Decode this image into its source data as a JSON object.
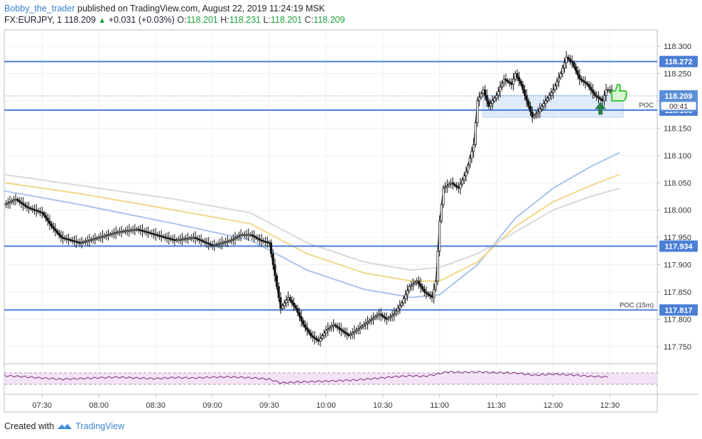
{
  "header": {
    "author": "Bobby_the_trader",
    "published_text": "published on TradingView.com, August 22, 2019 11:24:19 MSK",
    "symbol": "FX:EURJPY, 1",
    "last": "118.209",
    "change": "+0.031 (+0.03%)",
    "open_label": "O:",
    "open": "118.201",
    "high_label": "H:",
    "high": "118.231",
    "low_label": "L:",
    "low": "118.201",
    "close_label": "C:",
    "close": "118.209"
  },
  "footer": {
    "created_with": "Created with",
    "brand": "TradingView"
  },
  "colors": {
    "level_line": "#4a7fd6",
    "ema_blue": "#a9c4ec",
    "ema_yellow": "#f2d78a",
    "ema_gray": "#d9d9d9",
    "rsi_band": "#f3e3f6",
    "rsi_line": "#7b2d7b",
    "up_arrow": "#2e7d4f",
    "thumb_icon": "#3ec83e"
  },
  "chart_data": {
    "type": "candlestick",
    "symbol": "FX:EURJPY",
    "interval": "1",
    "y_range": [
      117.72,
      118.33
    ],
    "y_ticks": [
      "117.750",
      "117.800",
      "117.850",
      "117.900",
      "117.950",
      "118.000",
      "118.050",
      "118.100",
      "118.150",
      "118.200",
      "118.250",
      "118.300"
    ],
    "x_ticks": [
      "07:30",
      "08:00",
      "08:30",
      "09:00",
      "09:30",
      "10:00",
      "10:30",
      "11:00",
      "11:30",
      "12:00",
      "12:30"
    ],
    "x_range_minutes": [
      430,
      775
    ],
    "price_path": [
      [
        430,
        118.01
      ],
      [
        436,
        118.02
      ],
      [
        442,
        118.005
      ],
      [
        450,
        117.995
      ],
      [
        455,
        117.97
      ],
      [
        460,
        117.95
      ],
      [
        470,
        117.94
      ],
      [
        480,
        117.95
      ],
      [
        490,
        117.96
      ],
      [
        500,
        117.965
      ],
      [
        510,
        117.955
      ],
      [
        520,
        117.945
      ],
      [
        530,
        117.95
      ],
      [
        540,
        117.935
      ],
      [
        550,
        117.945
      ],
      [
        555,
        117.955
      ],
      [
        560,
        117.955
      ],
      [
        565,
        117.945
      ],
      [
        570,
        117.94
      ],
      [
        572,
        117.9
      ],
      [
        574,
        117.86
      ],
      [
        576,
        117.82
      ],
      [
        580,
        117.84
      ],
      [
        584,
        117.82
      ],
      [
        588,
        117.79
      ],
      [
        592,
        117.77
      ],
      [
        596,
        117.76
      ],
      [
        600,
        117.78
      ],
      [
        604,
        117.79
      ],
      [
        608,
        117.78
      ],
      [
        612,
        117.77
      ],
      [
        616,
        117.78
      ],
      [
        620,
        117.79
      ],
      [
        624,
        117.8
      ],
      [
        628,
        117.81
      ],
      [
        632,
        117.8
      ],
      [
        636,
        117.81
      ],
      [
        640,
        117.83
      ],
      [
        644,
        117.86
      ],
      [
        648,
        117.87
      ],
      [
        652,
        117.85
      ],
      [
        656,
        117.84
      ],
      [
        658,
        117.87
      ],
      [
        660,
        117.98
      ],
      [
        662,
        118.04
      ],
      [
        666,
        118.05
      ],
      [
        670,
        118.04
      ],
      [
        674,
        118.07
      ],
      [
        678,
        118.12
      ],
      [
        680,
        118.2
      ],
      [
        683,
        118.22
      ],
      [
        686,
        118.19
      ],
      [
        690,
        118.21
      ],
      [
        694,
        118.24
      ],
      [
        698,
        118.23
      ],
      [
        700,
        118.25
      ],
      [
        703,
        118.23
      ],
      [
        706,
        118.2
      ],
      [
        709,
        118.17
      ],
      [
        712,
        118.18
      ],
      [
        716,
        118.2
      ],
      [
        720,
        118.22
      ],
      [
        724,
        118.25
      ],
      [
        727,
        118.28
      ],
      [
        730,
        118.27
      ],
      [
        734,
        118.24
      ],
      [
        738,
        118.23
      ],
      [
        742,
        118.21
      ],
      [
        746,
        118.2
      ],
      [
        748,
        118.22
      ],
      [
        750,
        118.22
      ],
      [
        752,
        118.209
      ]
    ],
    "ema_series": [
      {
        "color_key": "ema_blue",
        "points": [
          [
            430,
            118.035
          ],
          [
            470,
            118.01
          ],
          [
            520,
            117.975
          ],
          [
            560,
            117.945
          ],
          [
            590,
            117.89
          ],
          [
            620,
            117.855
          ],
          [
            645,
            117.84
          ],
          [
            660,
            117.845
          ],
          [
            680,
            117.9
          ],
          [
            700,
            117.985
          ],
          [
            720,
            118.04
          ],
          [
            740,
            118.08
          ],
          [
            755,
            118.105
          ]
        ]
      },
      {
        "color_key": "ema_yellow",
        "points": [
          [
            430,
            118.05
          ],
          [
            470,
            118.03
          ],
          [
            520,
            118.0
          ],
          [
            560,
            117.975
          ],
          [
            590,
            117.92
          ],
          [
            620,
            117.885
          ],
          [
            645,
            117.87
          ],
          [
            660,
            117.87
          ],
          [
            680,
            117.905
          ],
          [
            700,
            117.97
          ],
          [
            720,
            118.015
          ],
          [
            740,
            118.045
          ],
          [
            755,
            118.065
          ]
        ]
      },
      {
        "color_key": "ema_gray",
        "points": [
          [
            430,
            118.065
          ],
          [
            470,
            118.045
          ],
          [
            520,
            118.02
          ],
          [
            560,
            117.995
          ],
          [
            590,
            117.94
          ],
          [
            620,
            117.905
          ],
          [
            645,
            117.89
          ],
          [
            660,
            117.895
          ],
          [
            680,
            117.92
          ],
          [
            700,
            117.96
          ],
          [
            720,
            118.0
          ],
          [
            740,
            118.025
          ],
          [
            755,
            118.04
          ]
        ]
      }
    ],
    "levels": [
      {
        "price": 118.272,
        "label": "118.272"
      },
      {
        "price": 118.183,
        "label": "118.183"
      },
      {
        "price": 117.934,
        "label": "117.934"
      },
      {
        "price": 117.817,
        "label": "117.817"
      }
    ],
    "current_price": {
      "price": 118.209,
      "label": "118.209",
      "countdown": "00:41"
    },
    "poc_labels": [
      {
        "text": "POC",
        "price": 118.183
      },
      {
        "text": "POC (15m)",
        "price": 117.817
      }
    ],
    "zone": {
      "from_minute": 683,
      "to_minute": 757,
      "price_low": 118.17,
      "price_high": 118.21
    },
    "rsi_path": [
      [
        430,
        60
      ],
      [
        440,
        57
      ],
      [
        450,
        52
      ],
      [
        460,
        48
      ],
      [
        470,
        50
      ],
      [
        480,
        53
      ],
      [
        490,
        55
      ],
      [
        500,
        52
      ],
      [
        510,
        50
      ],
      [
        520,
        54
      ],
      [
        530,
        52
      ],
      [
        540,
        55
      ],
      [
        550,
        56
      ],
      [
        560,
        53
      ],
      [
        570,
        48
      ],
      [
        576,
        35
      ],
      [
        585,
        38
      ],
      [
        595,
        40
      ],
      [
        605,
        42
      ],
      [
        615,
        45
      ],
      [
        625,
        50
      ],
      [
        635,
        56
      ],
      [
        645,
        60
      ],
      [
        652,
        58
      ],
      [
        658,
        65
      ],
      [
        664,
        74
      ],
      [
        672,
        72
      ],
      [
        680,
        74
      ],
      [
        690,
        71
      ],
      [
        700,
        70
      ],
      [
        710,
        62
      ],
      [
        720,
        66
      ],
      [
        730,
        63
      ],
      [
        740,
        58
      ],
      [
        750,
        56
      ]
    ]
  }
}
